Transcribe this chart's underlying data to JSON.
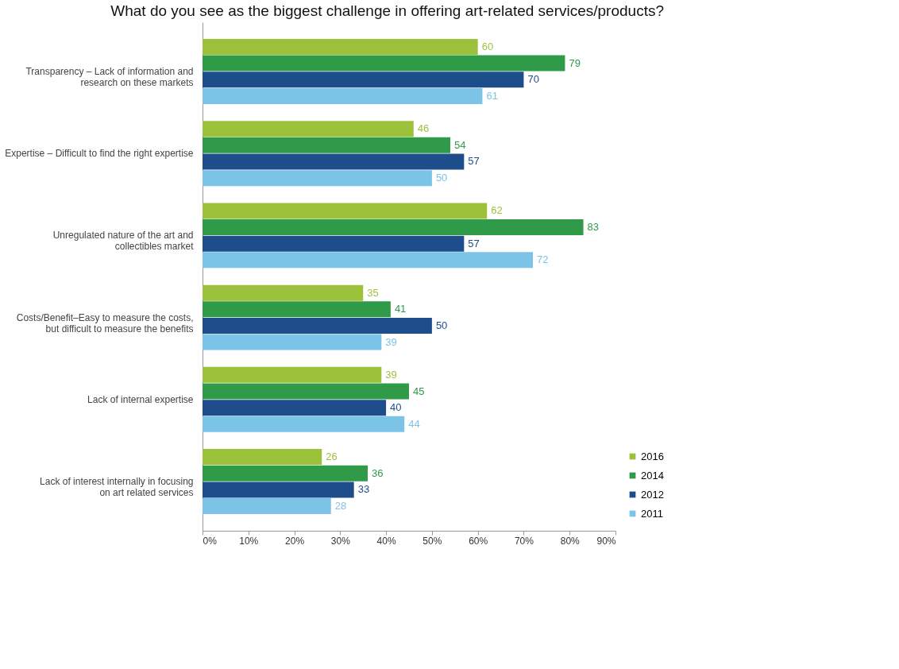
{
  "chart_data": {
    "type": "bar",
    "orientation": "horizontal",
    "title": "What do you see as the biggest challenge in offering art-related services/products?",
    "categories": [
      "Transparency – Lack of information and research on these markets",
      "Expertise – Difficult to find the right expertise",
      "Unregulated nature of the art and collectibles market",
      "Costs/Benefit–Easy to measure the costs, but difficult to measure the benefits",
      "Lack of internal expertise",
      "Lack of interest internally in focusing on art related services"
    ],
    "series": [
      {
        "name": "2016",
        "color": "#9cc23c",
        "values": [
          60,
          46,
          62,
          35,
          39,
          26
        ]
      },
      {
        "name": "2014",
        "color": "#2f9a48",
        "values": [
          79,
          54,
          83,
          41,
          45,
          36
        ]
      },
      {
        "name": "2012",
        "color": "#1e4d8c",
        "values": [
          70,
          57,
          57,
          50,
          40,
          33
        ]
      },
      {
        "name": "2011",
        "color": "#7cc3e8",
        "values": [
          61,
          50,
          72,
          39,
          44,
          28
        ]
      }
    ],
    "xlim": [
      0,
      90
    ],
    "xticks": [
      {
        "value": 0,
        "label": "0%"
      },
      {
        "value": 10,
        "label": "10%"
      },
      {
        "value": 20,
        "label": "20%"
      },
      {
        "value": 30,
        "label": "30%"
      },
      {
        "value": 40,
        "label": "40%"
      },
      {
        "value": 50,
        "label": "50%"
      },
      {
        "value": 60,
        "label": "60%"
      },
      {
        "value": 70,
        "label": "70%"
      },
      {
        "value": 80,
        "label": "80%"
      },
      {
        "value": 90,
        "label": "90%"
      }
    ],
    "data_labels": true,
    "grid": false,
    "legend": "bottom right"
  }
}
